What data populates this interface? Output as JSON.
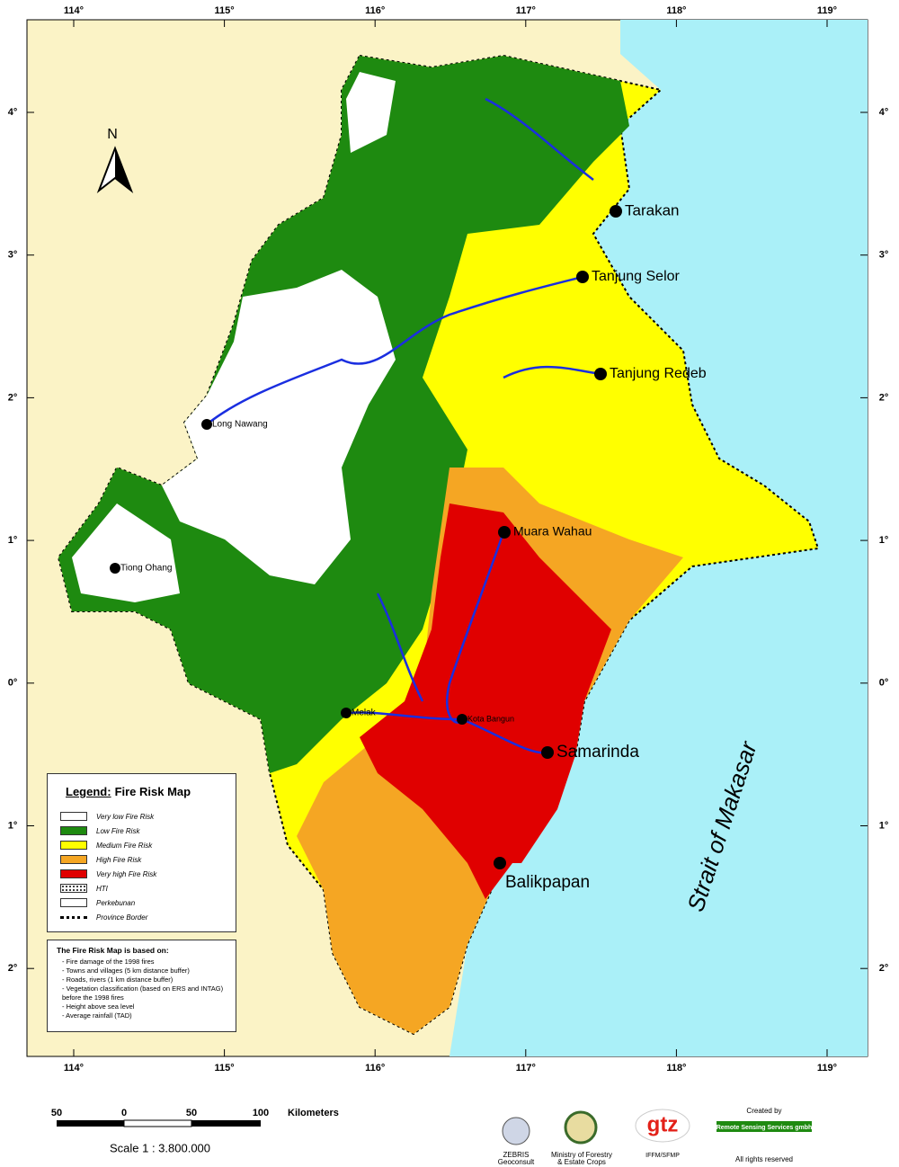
{
  "map": {
    "longitude_labels": [
      "114°",
      "115°",
      "116°",
      "117°",
      "118°",
      "119°"
    ],
    "latitude_labels": [
      "4°",
      "3°",
      "2°",
      "1°",
      "0°",
      "1°",
      "2°"
    ],
    "north": "N",
    "places": [
      "Tarakan",
      "Tanjung Selor",
      "Tanjung Redeb",
      "Long Nawang",
      "Muara Wahau",
      "Tiong Ohang",
      "Melak",
      "Kota Bangun",
      "Samarinda",
      "Balikpapan"
    ],
    "sea_label": "Strait of Makasar",
    "legend": {
      "title_prefix": "Legend:",
      "title": "Fire Risk Map",
      "items": [
        "Very low Fire Risk",
        "Low Fire Risk",
        "Medium Fire Risk",
        "High Fire Risk",
        "Very high Fire Risk",
        "HTI",
        "Perkebunan",
        "Province Border"
      ]
    },
    "notes": {
      "title": "The Fire Risk Map is based on:",
      "items": [
        "- Fire damage of the 1998 fires",
        "- Towns and villages (5 km distance buffer)",
        "- Roads, rivers (1 km distance buffer)",
        "- Vegetation classification (based on ERS and INTAG) before the 1998 fires",
        "- Height above sea level",
        "- Average rainfall (TAD)"
      ]
    }
  },
  "scale_bar": {
    "ticks": [
      "50",
      "0",
      "50",
      "100"
    ],
    "unit": "Kilometers",
    "label": "Scale 1 : 3.800.000"
  },
  "credits": {
    "zebris": [
      "ZEBRIS",
      "Geoconsult"
    ],
    "ministry": [
      "Ministry of Forestry",
      "& Estate Crops"
    ],
    "gtz": [
      "gtz",
      "IFFM/SFMP"
    ],
    "created_by": "Created by",
    "company": "Remote Sensing Services gmbh",
    "rights": "All rights reserved"
  }
}
